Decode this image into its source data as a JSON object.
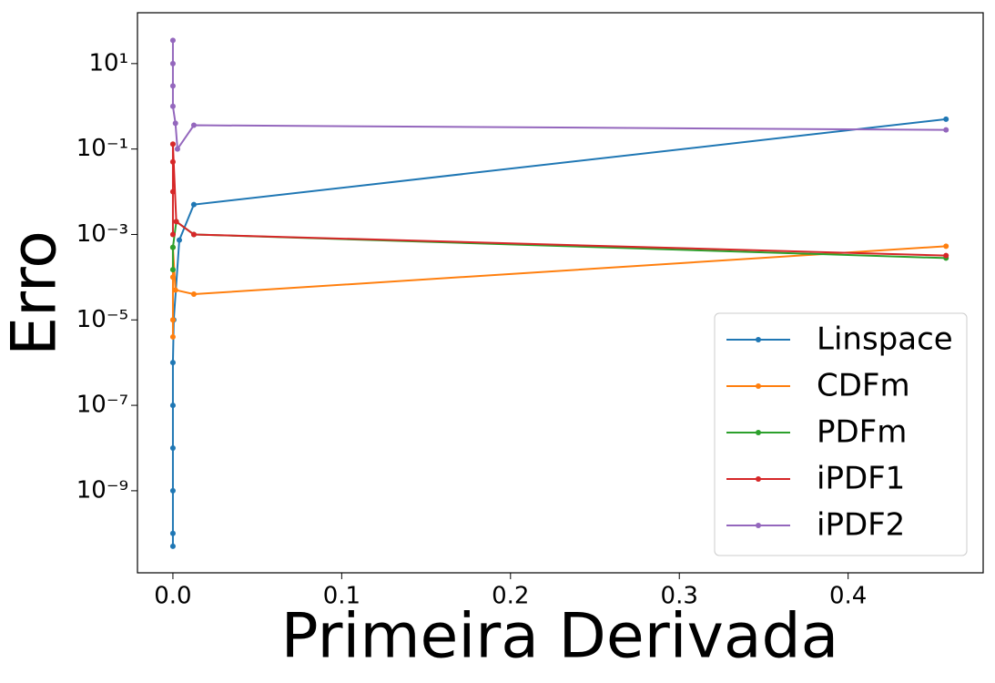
{
  "chart_data": {
    "type": "line",
    "x_label": "Primeira Derivada",
    "y_label": "Erro",
    "y_scale": "log",
    "legend": "lower right",
    "xlim": [
      -0.021,
      0.48
    ],
    "ylim": [
      1.2e-11,
      155
    ],
    "xticks": [
      {
        "value": 0,
        "label": "0.0"
      },
      0.1,
      0.2,
      0.3,
      0.4
    ],
    "yticks": [
      {
        "value": 1e-09,
        "label": "10⁻⁹"
      },
      {
        "value": 1e-07,
        "label": "10⁻⁷"
      },
      {
        "value": 1e-05,
        "label": "10⁻⁵"
      },
      {
        "value": 0.001,
        "label": "10⁻³"
      },
      {
        "value": 0.1,
        "label": "10⁻¹"
      },
      {
        "value": 10,
        "label": "10¹"
      }
    ],
    "series": [
      {
        "name": "Linspace",
        "color": "#1f77b4",
        "x": [
          0,
          0,
          0,
          0,
          0,
          0,
          0.0005,
          0.0038,
          0.0124,
          0.458
        ],
        "values": [
          5e-11,
          1e-10,
          1e-09,
          1e-08,
          1e-07,
          1e-06,
          1e-05,
          0.00074,
          0.005,
          0.5
        ]
      },
      {
        "name": "CDFm",
        "color": "#ff7f0e",
        "x": [
          0,
          0,
          0,
          0,
          0.0015,
          0.0124,
          0.458
        ],
        "values": [
          4e-06,
          1e-05,
          0.0001,
          0.0005,
          5e-05,
          4e-05,
          0.00053
        ]
      },
      {
        "name": "PDFm",
        "color": "#2ca02c",
        "x": [
          0,
          0,
          0.002,
          0.0124,
          0.458
        ],
        "values": [
          0.00015,
          0.0005,
          0.002,
          0.001,
          0.00028
        ]
      },
      {
        "name": "iPDF1",
        "color": "#d62728",
        "x": [
          0,
          0,
          0,
          0,
          0.002,
          0.0124,
          0.458
        ],
        "values": [
          0.001,
          0.01,
          0.05,
          0.13,
          0.002,
          0.001,
          0.00032
        ]
      },
      {
        "name": "iPDF2",
        "color": "#9467bd",
        "x": [
          0,
          0,
          0,
          0,
          0.0015,
          0.0027,
          0.0124,
          0.458
        ],
        "values": [
          35,
          10,
          3,
          1,
          0.4,
          0.1,
          0.36,
          0.28
        ]
      }
    ]
  }
}
